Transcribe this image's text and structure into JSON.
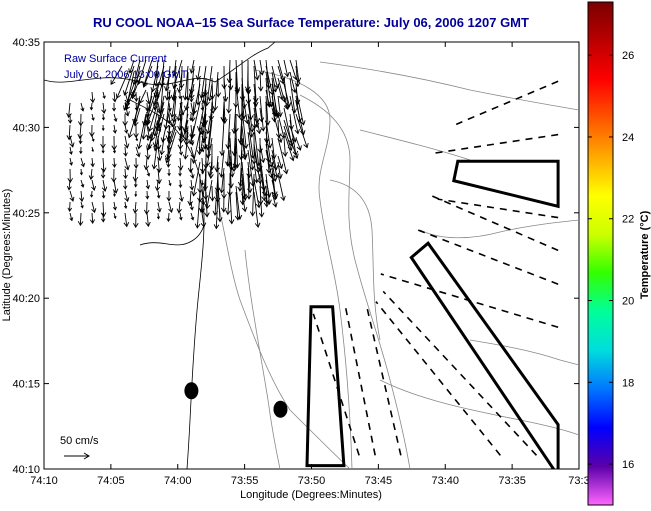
{
  "chart_data": {
    "type": "scatter",
    "title": "RU COOL  NOAA–15  Sea Surface Temperature:  July 06, 2006 1207 GMT",
    "xlabel": "Longitude (Degrees:Minutes)",
    "ylabel": "Latitude (Degrees:Minutes)",
    "x_ticks": [
      "74:10",
      "74:05",
      "74:00",
      "73:55",
      "73:50",
      "73:45",
      "73:40",
      "73:35",
      "73:3"
    ],
    "y_ticks": [
      "40:35",
      "40:30",
      "40:25",
      "40:20",
      "40:15",
      "40:10"
    ],
    "xlim_minutes_west": [
      10,
      -30
    ],
    "ylim_minutes_north": [
      10,
      35
    ],
    "legend": {
      "line1": "Raw Surface Current",
      "line2": "July 06, 2006 13:00 GMT",
      "placement": "top-left"
    },
    "scale_label": "50 cm/s",
    "colorbar": {
      "label": "Temperature (°C)",
      "ticks": [
        26,
        24,
        22,
        20,
        18,
        16
      ],
      "range": [
        15,
        27.3
      ],
      "colors": [
        "#ff66ff",
        "#5a00aa",
        "#0000ff",
        "#0077ff",
        "#00dddd",
        "#00ff99",
        "#33ff00",
        "#ccff00",
        "#ffff00",
        "#ffaa00",
        "#ff5500",
        "#ff0000",
        "#bb0000",
        "#7a0000"
      ]
    },
    "markers": [
      {
        "lon_w": 73.983,
        "lat_n": 40.243,
        "shape": "ellipse"
      },
      {
        "lon_w": 73.872,
        "lat_n": 40.225,
        "shape": "ellipse"
      }
    ],
    "boxes_solid": [
      [
        [
          73.839,
          40.17
        ],
        [
          73.834,
          40.325
        ],
        [
          73.807,
          40.325
        ],
        [
          73.793,
          40.17
        ]
      ],
      [
        [
          73.656,
          40.448
        ],
        [
          73.651,
          40.467
        ],
        [
          73.526,
          40.467
        ],
        [
          73.526,
          40.423
        ]
      ],
      [
        [
          73.709,
          40.373
        ],
        [
          73.688,
          40.387
        ],
        [
          73.526,
          40.21
        ],
        [
          73.526,
          40.16
        ]
      ]
    ],
    "rays_dashed": [
      [
        [
          73.774,
          40.18
        ],
        [
          73.831,
          40.318
        ]
      ],
      [
        [
          73.754,
          40.18
        ],
        [
          73.791,
          40.325
        ]
      ],
      [
        [
          73.722,
          40.18
        ],
        [
          73.765,
          40.327
        ]
      ],
      [
        [
          73.598,
          40.18
        ],
        [
          73.753,
          40.33
        ]
      ],
      [
        [
          73.553,
          40.18
        ],
        [
          73.744,
          40.34
        ]
      ],
      [
        [
          73.526,
          40.305
        ],
        [
          73.747,
          40.357
        ]
      ],
      [
        [
          73.526,
          40.347
        ],
        [
          73.701,
          40.4
        ]
      ],
      [
        [
          73.526,
          40.38
        ],
        [
          73.683,
          40.433
        ]
      ],
      [
        [
          73.526,
          40.412
        ],
        [
          73.676,
          40.43
        ]
      ],
      [
        [
          73.526,
          40.493
        ],
        [
          73.679,
          40.475
        ]
      ],
      [
        [
          73.526,
          40.545
        ],
        [
          73.653,
          40.503
        ]
      ]
    ]
  }
}
